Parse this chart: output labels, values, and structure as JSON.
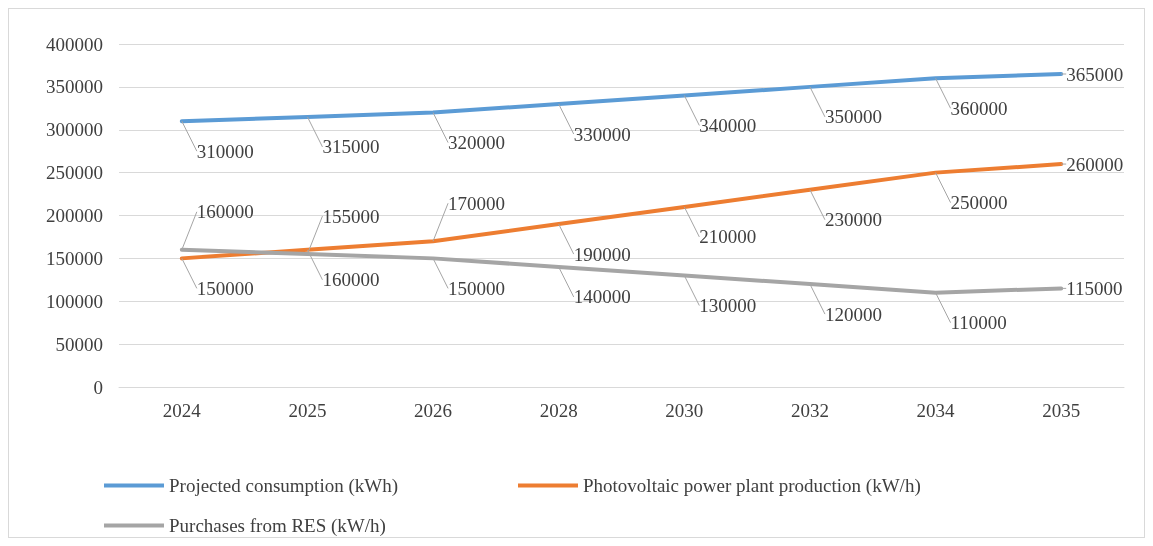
{
  "chart_data": {
    "type": "line",
    "categories": [
      "2024",
      "2025",
      "2026",
      "2028",
      "2030",
      "2032",
      "2034",
      "2035"
    ],
    "series": [
      {
        "name": "Projected consumption (kWh)",
        "color": "#5b9bd5",
        "values": [
          310000,
          315000,
          320000,
          330000,
          340000,
          350000,
          360000,
          365000
        ]
      },
      {
        "name": "Photovoltaic power plant production (kW/h)",
        "color": "#ed7d31",
        "values": [
          150000,
          160000,
          170000,
          190000,
          210000,
          230000,
          250000,
          260000
        ]
      },
      {
        "name": "Purchases from RES (kW/h)",
        "color": "#a5a5a5",
        "values": [
          160000,
          155000,
          150000,
          140000,
          130000,
          120000,
          110000,
          115000
        ]
      }
    ],
    "ylim": [
      0,
      400000
    ],
    "yticks": [
      0,
      50000,
      100000,
      150000,
      200000,
      250000,
      300000,
      350000,
      400000
    ],
    "grid": "y",
    "legend": "bottom",
    "marker": "none",
    "line_style": "solid",
    "data_labels": true
  }
}
